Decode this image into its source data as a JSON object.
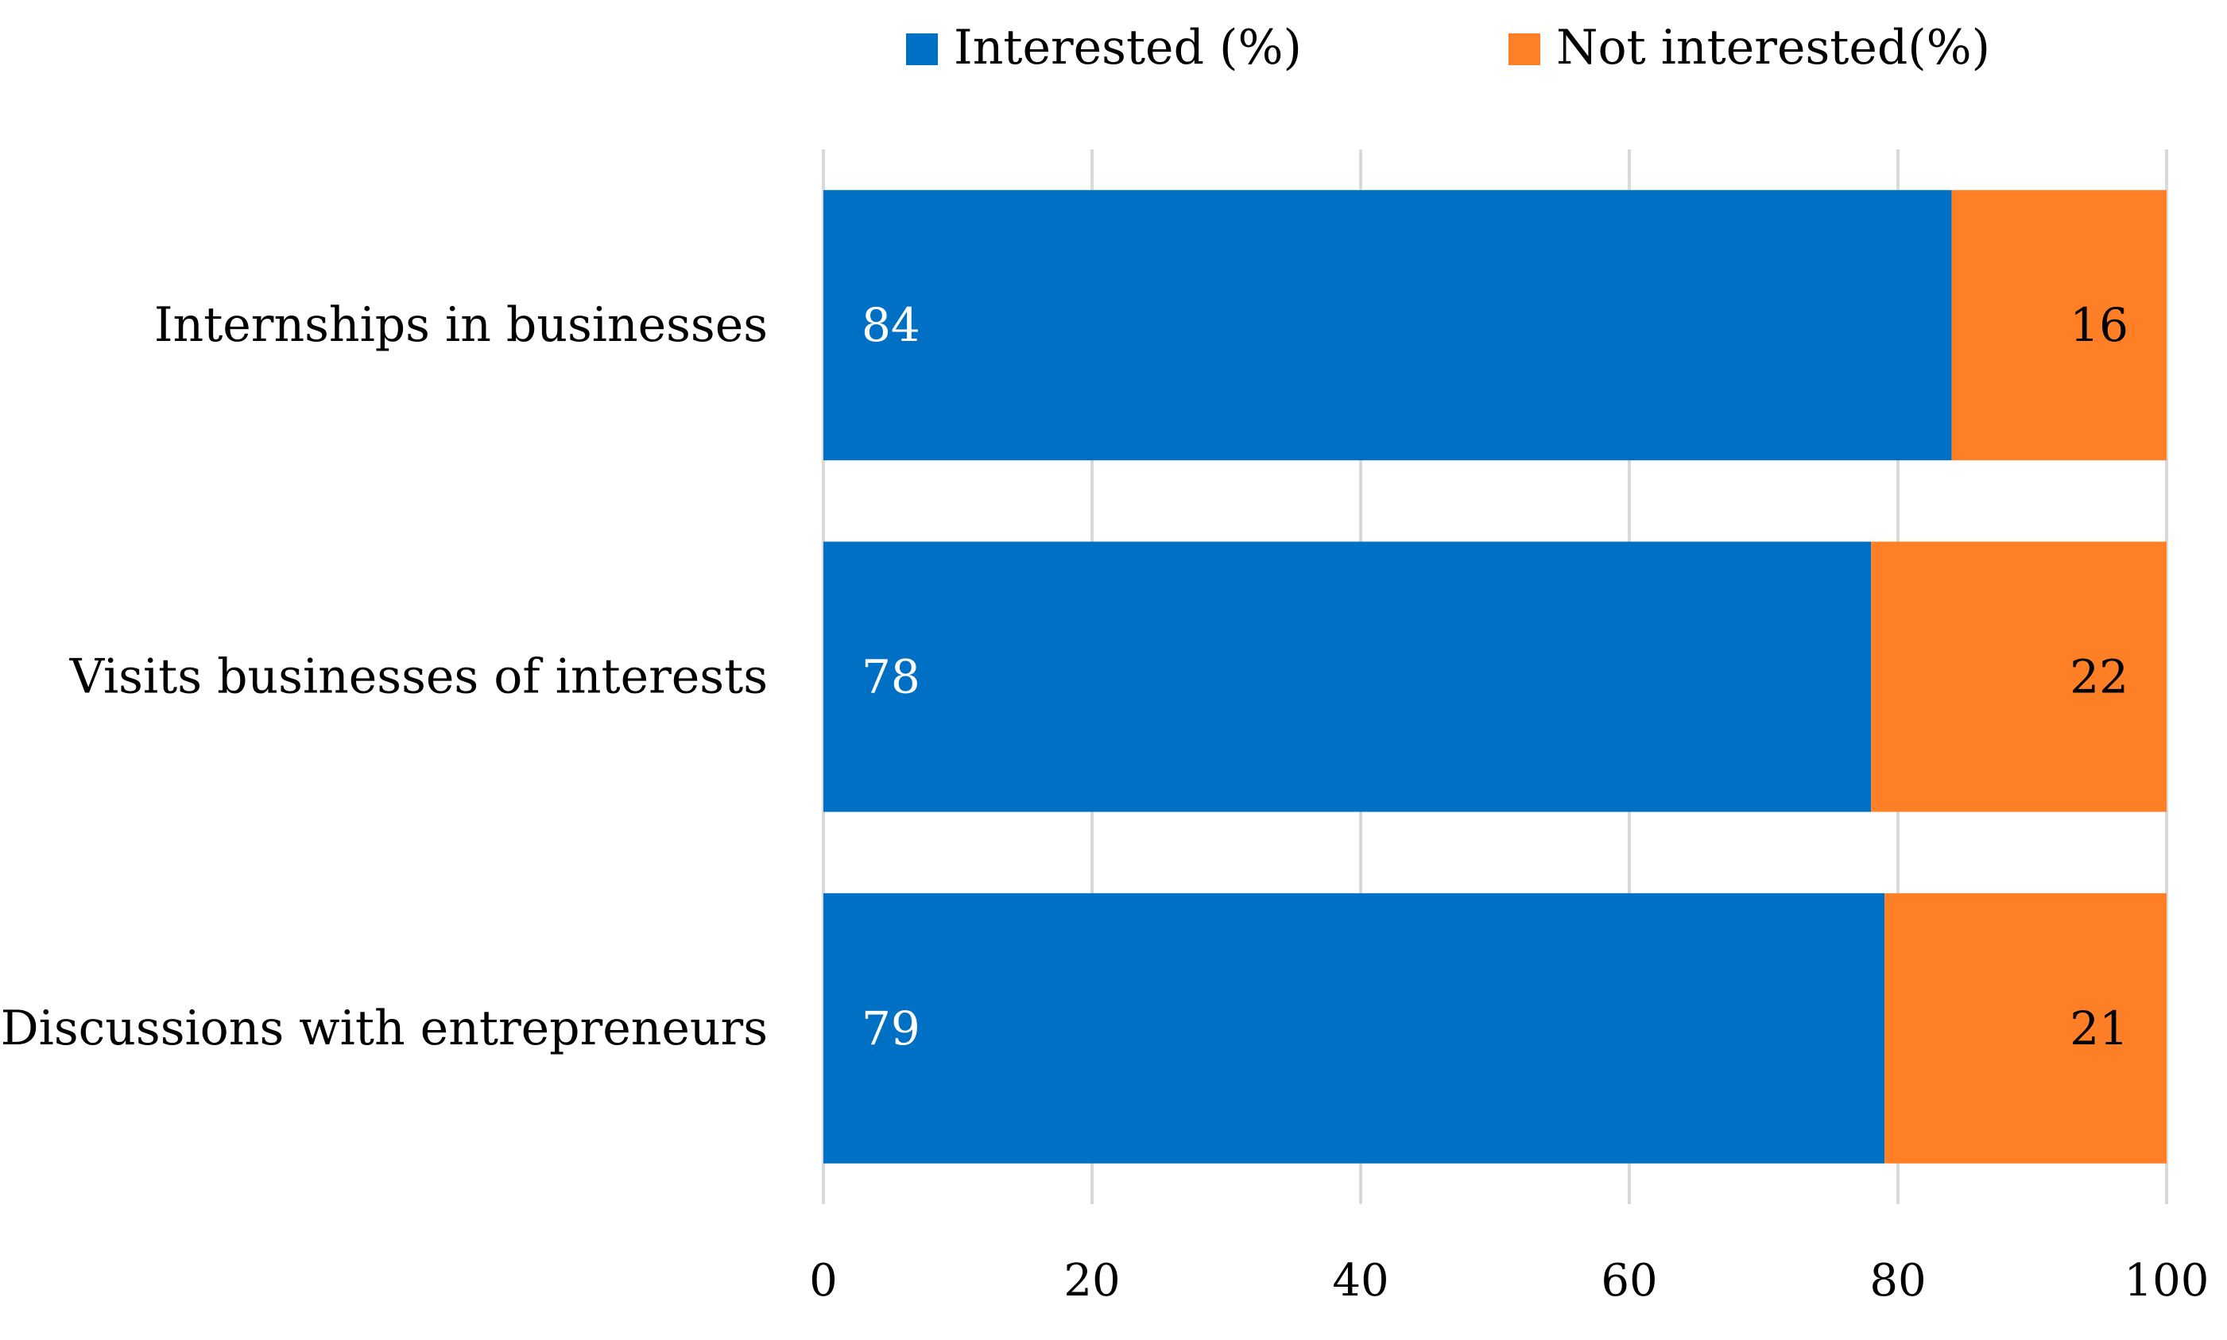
{
  "chart_data": {
    "type": "bar",
    "orientation": "horizontal",
    "stacked": true,
    "title": "",
    "xlabel": "",
    "ylabel": "",
    "categories": [
      "Internships in businesses",
      "Visits businesses of interests",
      "Discussions with entrepreneurs"
    ],
    "series": [
      {
        "name": "Interested (%)",
        "values": [
          84,
          78,
          79
        ],
        "color": "#0070C4"
      },
      {
        "name": "Not interested(%)",
        "values": [
          16,
          22,
          21
        ],
        "color": "#FF7F27"
      }
    ],
    "xlim": [
      0,
      100
    ],
    "xticks": [
      "0",
      "20",
      "40",
      "60",
      "80",
      "100"
    ],
    "grid": true,
    "legend_position": "top-center",
    "data_labels": true
  }
}
